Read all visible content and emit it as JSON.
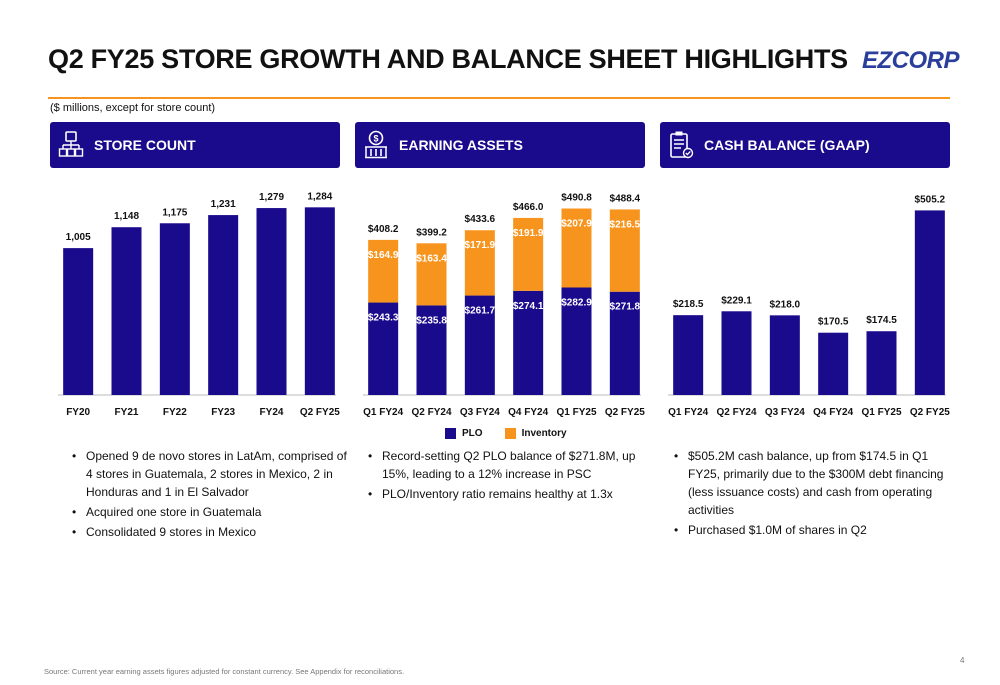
{
  "header": {
    "title": "Q2 FY25 STORE GROWTH AND BALANCE SHEET HIGHLIGHTS",
    "logo": "EZCORP",
    "units_note": "($ millions, except for store count)"
  },
  "panels": [
    {
      "title": "STORE COUNT",
      "icon": "store-network-icon"
    },
    {
      "title": "EARNING ASSETS",
      "icon": "money-building-icon"
    },
    {
      "title": "CASH BALANCE (GAAP)",
      "icon": "clipboard-checklist-icon"
    }
  ],
  "colors": {
    "navy": "#1a0a8c",
    "orange": "#f7941d",
    "rule": "#f7941d"
  },
  "chart_data": [
    {
      "type": "bar",
      "title": "STORE COUNT",
      "categories": [
        "FY20",
        "FY21",
        "FY22",
        "FY23",
        "FY24",
        "Q2 FY25"
      ],
      "values": [
        1005,
        1148,
        1175,
        1231,
        1279,
        1284
      ],
      "labels": [
        "1,005",
        "1,148",
        "1,175",
        "1,231",
        "1,279",
        "1,284"
      ],
      "ylim": [
        0,
        1300
      ]
    },
    {
      "type": "bar",
      "stacked": true,
      "title": "EARNING ASSETS",
      "categories": [
        "Q1 FY24",
        "Q2 FY24",
        "Q3 FY24",
        "Q4 FY24",
        "Q1 FY25",
        "Q2 FY25"
      ],
      "series": [
        {
          "name": "PLO",
          "values": [
            243.3,
            235.8,
            261.7,
            274.1,
            282.9,
            271.8
          ],
          "labels": [
            "$243.3",
            "$235.8",
            "$261.7",
            "$274.1",
            "$282.9",
            "$271.8"
          ]
        },
        {
          "name": "Inventory",
          "values": [
            164.9,
            163.4,
            171.9,
            191.9,
            207.9,
            216.5
          ],
          "labels": [
            "$164.9",
            "$163.4",
            "$171.9",
            "$191.9",
            "$207.9",
            "$216.5"
          ]
        }
      ],
      "totals": [
        408.2,
        399.2,
        433.6,
        466.0,
        490.8,
        488.4
      ],
      "total_labels": [
        "$408.2",
        "$399.2",
        "$433.6",
        "$466.0",
        "$490.8",
        "$488.4"
      ],
      "legend": "bottom",
      "ylim": [
        0,
        500
      ]
    },
    {
      "type": "bar",
      "title": "CASH BALANCE (GAAP)",
      "categories": [
        "Q1 FY24",
        "Q2 FY24",
        "Q3 FY24",
        "Q4 FY24",
        "Q1 FY25",
        "Q2 FY25"
      ],
      "values": [
        218.5,
        229.1,
        218.0,
        170.5,
        174.5,
        505.2
      ],
      "labels": [
        "$218.5",
        "$229.1",
        "$218.0",
        "$170.5",
        "$174.5",
        "$505.2"
      ],
      "ylim": [
        0,
        520
      ]
    }
  ],
  "bullets": {
    "store_count": [
      "Opened 9 de novo stores in LatAm, comprised of 4 stores in Guatemala, 2 stores in Mexico, 2 in Honduras and 1 in El Salvador",
      "Acquired one store in Guatemala",
      "Consolidated 9 stores in Mexico"
    ],
    "earning_assets": [
      "Record-setting Q2 PLO balance of $271.8M, up 15%, leading to a 12% increase in PSC",
      "PLO/Inventory ratio remains healthy at 1.3x"
    ],
    "cash_balance": [
      "$505.2M cash balance, up from $174.5 in Q1 FY25, primarily due to the $300M debt financing (less issuance costs) and cash from operating activities",
      "Purchased $1.0M of shares in Q2"
    ]
  },
  "footer": {
    "source": "Source: Current year earning assets figures adjusted for constant currency. See Appendix for reconciliations.",
    "page_number": "4"
  }
}
